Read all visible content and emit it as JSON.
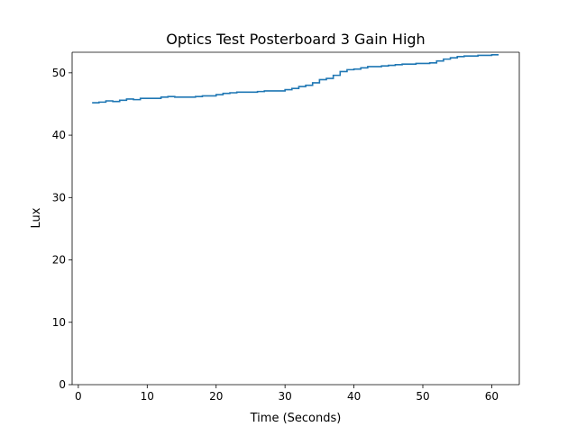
{
  "chart_data": {
    "type": "line",
    "title": "Optics Test Posterboard 3 Gain High",
    "xlabel": "Time (Seconds)",
    "ylabel": "Lux",
    "xlim": [
      -0.9,
      64
    ],
    "ylim": [
      0,
      53.3
    ],
    "xticks": [
      0,
      10,
      20,
      30,
      40,
      50,
      60
    ],
    "yticks": [
      0,
      10,
      20,
      30,
      40,
      50
    ],
    "grid": false,
    "line_color": "#1f77b4",
    "series": [
      {
        "x": [
          2,
          3,
          4,
          5,
          6,
          7,
          8,
          9,
          10,
          11,
          12,
          13,
          14,
          15,
          16,
          17,
          18,
          19,
          20,
          21,
          22,
          23,
          24,
          25,
          26,
          27,
          28,
          29,
          30,
          31,
          32,
          33,
          34,
          35,
          36,
          37,
          38,
          39,
          40,
          41,
          42,
          43,
          44,
          45,
          46,
          47,
          48,
          49,
          50,
          51,
          52,
          53,
          54,
          55,
          56,
          57,
          58,
          59,
          60,
          61
        ],
        "y": [
          45.2,
          45.3,
          45.5,
          45.4,
          45.6,
          45.8,
          45.7,
          45.9,
          45.9,
          45.9,
          46.1,
          46.2,
          46.1,
          46.1,
          46.1,
          46.2,
          46.3,
          46.3,
          46.5,
          46.7,
          46.8,
          46.9,
          46.9,
          46.9,
          47.0,
          47.1,
          47.1,
          47.1,
          47.3,
          47.5,
          47.8,
          48.0,
          48.4,
          48.9,
          49.1,
          49.6,
          50.2,
          50.5,
          50.6,
          50.8,
          51.0,
          51.0,
          51.1,
          51.2,
          51.3,
          51.4,
          51.4,
          51.5,
          51.5,
          51.6,
          51.9,
          52.2,
          52.4,
          52.6,
          52.7,
          52.7,
          52.8,
          52.8,
          52.9,
          52.9
        ]
      }
    ]
  }
}
